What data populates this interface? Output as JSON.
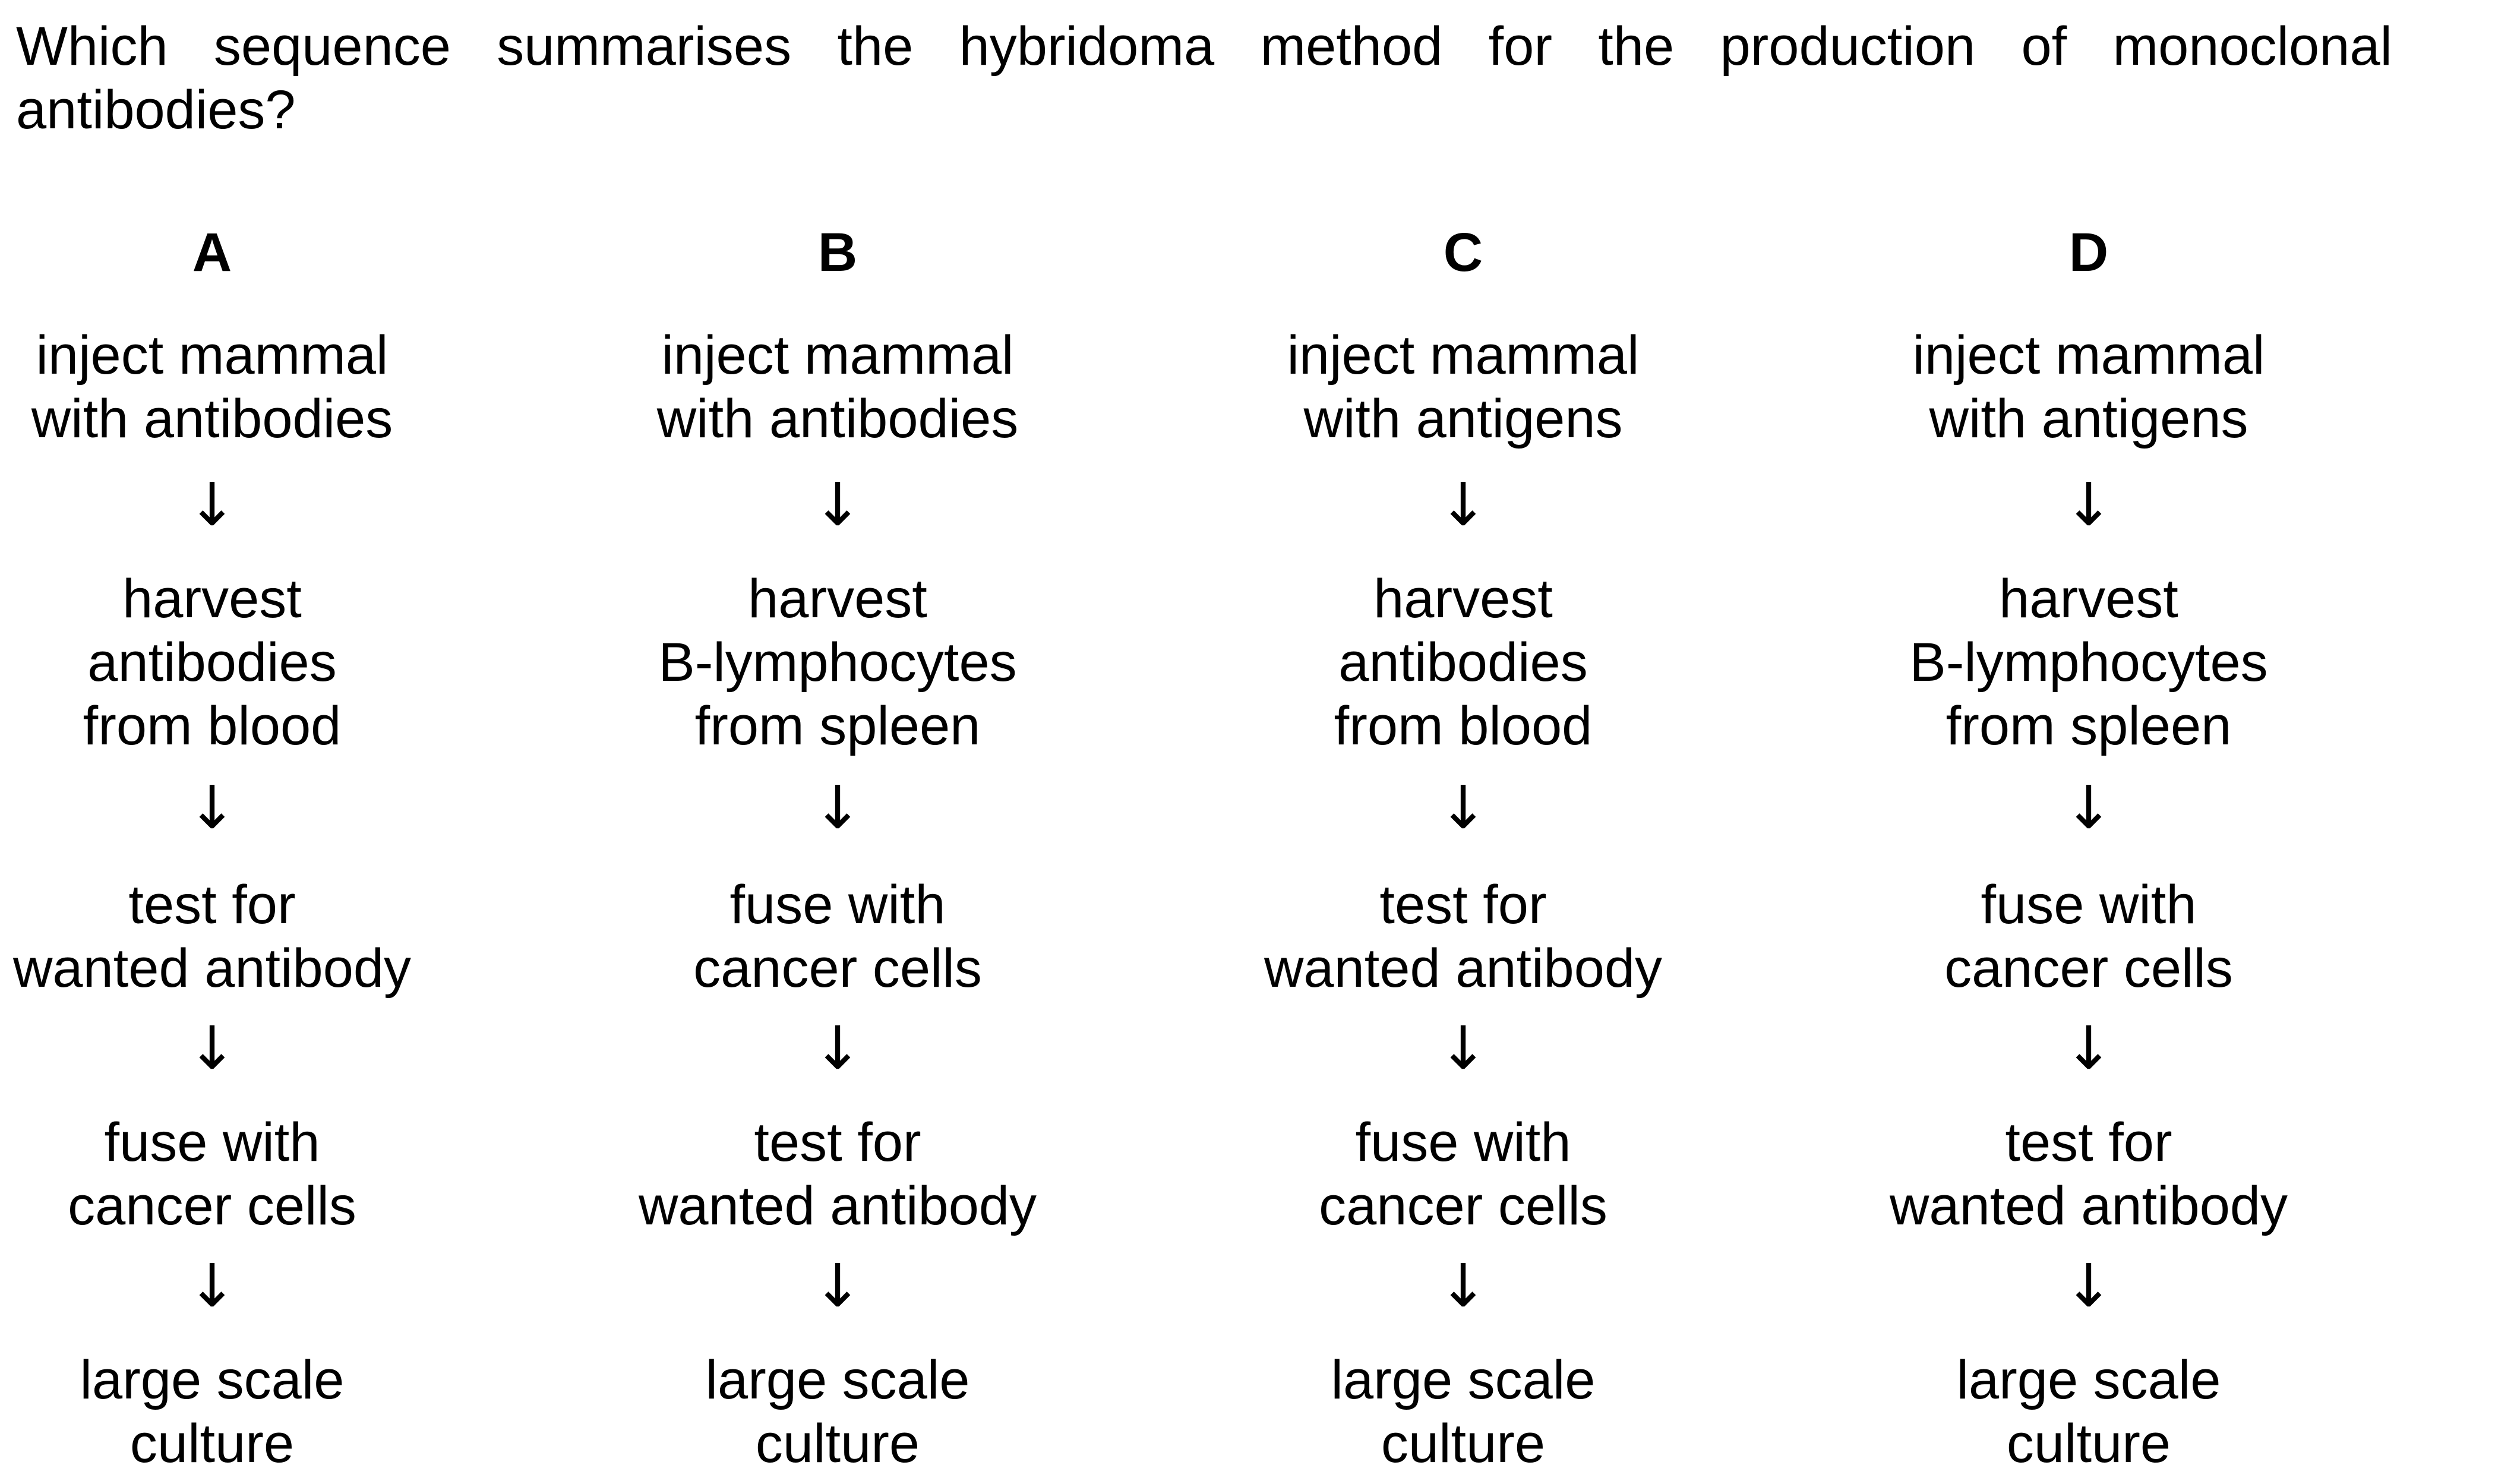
{
  "question": {
    "line1": "Which sequence summarises the hybridoma method for the production of monoclonal",
    "line2": "antibodies?"
  },
  "arrow_glyph": "↓",
  "options": [
    {
      "letter": "A",
      "steps": [
        "inject mammal\nwith antibodies",
        "harvest\nantibodies\nfrom blood",
        "test for\nwanted antibody",
        "fuse with\ncancer cells",
        "large scale\nculture"
      ]
    },
    {
      "letter": "B",
      "steps": [
        "inject mammal\nwith antibodies",
        "harvest\nB-lymphocytes\nfrom spleen",
        "fuse with\ncancer cells",
        "test for\nwanted antibody",
        "large scale\nculture"
      ]
    },
    {
      "letter": "C",
      "steps": [
        "inject mammal\nwith antigens",
        "harvest\nantibodies\nfrom blood",
        "test for\nwanted antibody",
        "fuse with\ncancer cells",
        "large scale\nculture"
      ]
    },
    {
      "letter": "D",
      "steps": [
        "inject mammal\nwith antigens",
        "harvest\nB-lymphocytes\nfrom spleen",
        "fuse with\ncancer cells",
        "test for\nwanted antibody",
        "large scale\nculture"
      ]
    }
  ]
}
